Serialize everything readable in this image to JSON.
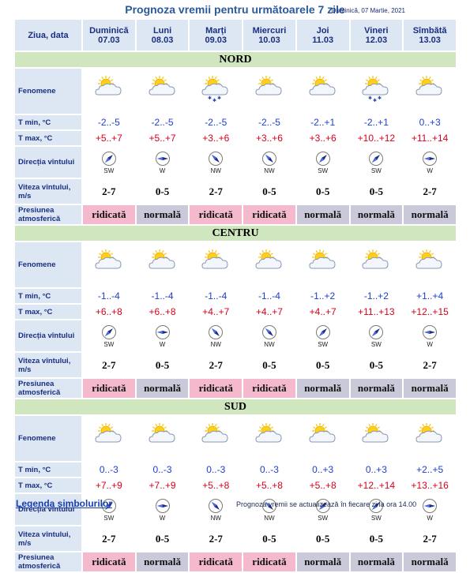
{
  "header": {
    "title": "Prognoza vremii pentru următoarele 7 zile",
    "date": "Duminică, 07 Martie, 2021",
    "col_label": "Ziua, data"
  },
  "days": [
    {
      "name": "Duminică",
      "date": "07.03"
    },
    {
      "name": "Luni",
      "date": "08.03"
    },
    {
      "name": "Marți",
      "date": "09.03"
    },
    {
      "name": "Miercuri",
      "date": "10.03"
    },
    {
      "name": "Joi",
      "date": "11.03"
    },
    {
      "name": "Vineri",
      "date": "12.03"
    },
    {
      "name": "Sîmbătă",
      "date": "13.03"
    }
  ],
  "labels": {
    "phenomena": "Fenomene",
    "tmin": "T min, °C",
    "tmax": "T max, °C",
    "wind_dir": "Direcția vîntului",
    "wind_speed": "Viteza vîntului, m/s",
    "pressure": "Presiunea atmosferică"
  },
  "icon_names": {
    "partly_cloudy": "partly-cloudy-icon",
    "partly_cloudy_snow": "partly-cloudy-snow-icon",
    "compass": "wind-compass-icon"
  },
  "colors": {
    "tmin": "#1a3fcf",
    "tmax": "#d8001a",
    "ridicata": "#f4b9cc",
    "normala": "#c9c9d9",
    "section": "#cfe6bf",
    "label_bg": "#dde7f3"
  },
  "regions": [
    {
      "name": "NORD",
      "icons": [
        "partly-cloudy",
        "partly-cloudy",
        "partly-cloudy-snow",
        "partly-cloudy",
        "partly-cloudy",
        "partly-cloudy-snow",
        "partly-cloudy"
      ],
      "tmin": [
        "-2..-5",
        "-2..-5",
        "-2..-5",
        "-2..-5",
        "-2..+1",
        "-2..+1",
        "0..+3"
      ],
      "tmax": [
        "+5..+7",
        "+5..+7",
        "+3..+6",
        "+3..+6",
        "+3..+6",
        "+10..+12",
        "+11..+14"
      ],
      "wind_dir": [
        "SW",
        "W",
        "NW",
        "NW",
        "SW",
        "SW",
        "W"
      ],
      "wind_speed": [
        "2-7",
        "0-5",
        "2-7",
        "0-5",
        "0-5",
        "0-5",
        "2-7"
      ],
      "pressure": [
        "ridicată",
        "normală",
        "ridicată",
        "ridicată",
        "normală",
        "normală",
        "normală"
      ]
    },
    {
      "name": "CENTRU",
      "icons": [
        "partly-cloudy",
        "partly-cloudy",
        "partly-cloudy",
        "partly-cloudy",
        "partly-cloudy",
        "partly-cloudy",
        "partly-cloudy"
      ],
      "tmin": [
        "-1..-4",
        "-1..-4",
        "-1..-4",
        "-1..-4",
        "-1..+2",
        "-1..+2",
        "+1..+4"
      ],
      "tmax": [
        "+6..+8",
        "+6..+8",
        "+4..+7",
        "+4..+7",
        "+4..+7",
        "+11..+13",
        "+12..+15"
      ],
      "wind_dir": [
        "SW",
        "W",
        "NW",
        "NW",
        "SW",
        "SW",
        "W"
      ],
      "wind_speed": [
        "2-7",
        "0-5",
        "2-7",
        "0-5",
        "0-5",
        "0-5",
        "2-7"
      ],
      "pressure": [
        "ridicată",
        "normală",
        "ridicată",
        "ridicată",
        "normală",
        "normală",
        "normală"
      ]
    },
    {
      "name": "SUD",
      "icons": [
        "partly-cloudy",
        "partly-cloudy",
        "partly-cloudy",
        "partly-cloudy",
        "partly-cloudy",
        "partly-cloudy",
        "partly-cloudy"
      ],
      "tmin": [
        "0..-3",
        "0..-3",
        "0..-3",
        "0..-3",
        "0..+3",
        "0..+3",
        "+2..+5"
      ],
      "tmax": [
        "+7..+9",
        "+7..+9",
        "+5..+8",
        "+5..+8",
        "+5..+8",
        "+12..+14",
        "+13..+16"
      ],
      "wind_dir": [
        "SW",
        "W",
        "NW",
        "NW",
        "SW",
        "SW",
        "W"
      ],
      "wind_speed": [
        "2-7",
        "0-5",
        "2-7",
        "0-5",
        "0-5",
        "0-5",
        "2-7"
      ],
      "pressure": [
        "ridicată",
        "normală",
        "ridicată",
        "ridicată",
        "normală",
        "normală",
        "normală"
      ]
    }
  ],
  "footer": {
    "legend_link": "Legenda simbolurilor",
    "update_note": "Prognoza vremii se actualizează în fiecare zi la ora 14.00"
  }
}
